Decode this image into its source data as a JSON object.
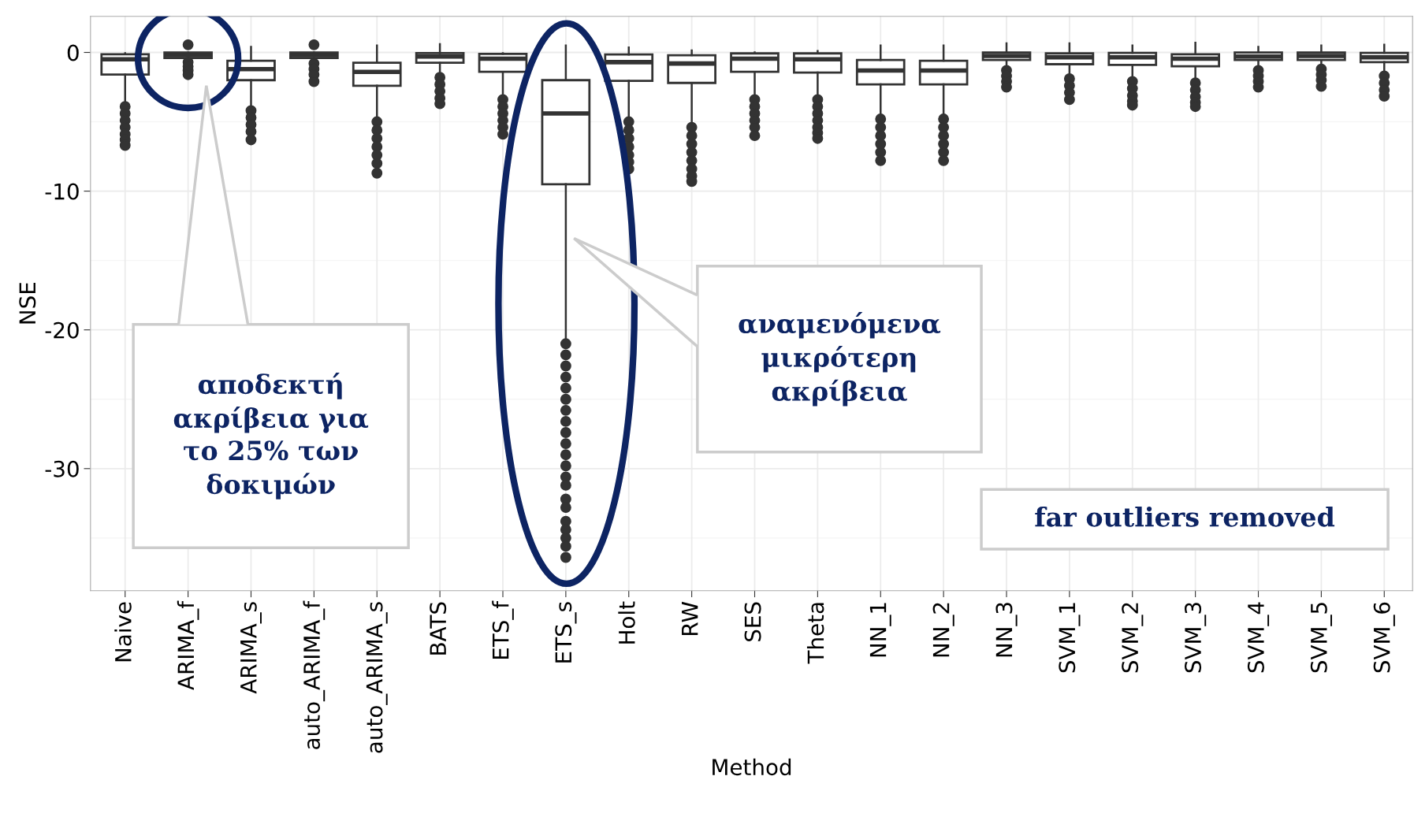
{
  "chart_data": {
    "type": "box",
    "xlabel": "Method",
    "ylabel": "NSE",
    "categories": [
      "Naive",
      "ARIMA_f",
      "ARIMA_s",
      "auto_ARIMA_f",
      "auto_ARIMA_s",
      "BATS",
      "ETS_f",
      "ETS_s",
      "Holt",
      "RW",
      "SES",
      "Theta",
      "NN_1",
      "NN_2",
      "NN_3",
      "SVM_1",
      "SVM_2",
      "SVM_3",
      "SVM_4",
      "SVM_5",
      "SVM_6"
    ],
    "boxes": [
      {
        "low": -3.7,
        "q1": -1.6,
        "median": -0.5,
        "q3": -0.13,
        "high": -0.05,
        "outliers": [
          -3.9,
          -4.4,
          -4.9,
          -5.4,
          -5.9,
          -6.3,
          -6.7
        ]
      },
      {
        "low": -0.6,
        "q1": -0.4,
        "median": -0.2,
        "q3": 0,
        "high": 0,
        "outliers": [
          0.55,
          -0.7,
          -1.0,
          -1.3,
          -1.6
        ]
      },
      {
        "low": -4.0,
        "q1": -2.0,
        "median": -1.2,
        "q3": -0.6,
        "high": 0.4,
        "outliers": [
          -4.2,
          -4.7,
          -5.2,
          -5.7,
          -6.3
        ]
      },
      {
        "low": -0.6,
        "q1": -0.4,
        "median": -0.2,
        "q3": 0,
        "high": 0,
        "outliers": [
          0.55,
          -0.8,
          -1.2,
          -1.6,
          -2.1
        ]
      },
      {
        "low": -4.8,
        "q1": -2.4,
        "median": -1.4,
        "q3": -0.75,
        "high": 0.5,
        "outliers": [
          -5.0,
          -5.6,
          -6.2,
          -6.8,
          -7.4,
          -8.0,
          -8.7
        ]
      },
      {
        "low": -1.6,
        "q1": -0.75,
        "median": -0.3,
        "q3": -0.05,
        "high": 0.6,
        "outliers": [
          -1.8,
          -2.3,
          -2.8,
          -3.3,
          -3.7
        ]
      },
      {
        "low": -3.2,
        "q1": -1.4,
        "median": -0.45,
        "q3": -0.1,
        "high": -0.05,
        "outliers": [
          -3.4,
          -3.9,
          -4.4,
          -4.9,
          -5.4,
          -5.9
        ]
      },
      {
        "low": -20.7,
        "q1": -9.5,
        "median": -4.4,
        "q3": -2.0,
        "high": 0.5,
        "outliers": [
          -21.0,
          -21.8,
          -22.6,
          -23.4,
          -24.2,
          -25.0,
          -25.8,
          -26.6,
          -27.4,
          -28.2,
          -29.0,
          -29.8,
          -30.6,
          -31.2,
          -32.2,
          -32.8,
          -33.8,
          -34.4,
          -35.0,
          -35.6,
          -36.4
        ]
      },
      {
        "low": -4.8,
        "q1": -2.05,
        "median": -0.7,
        "q3": -0.15,
        "high": 0.35,
        "outliers": [
          -5.0,
          -5.6,
          -6.2,
          -6.8,
          -7.4,
          -7.9,
          -8.4
        ]
      },
      {
        "low": -5.2,
        "q1": -2.2,
        "median": -0.8,
        "q3": -0.2,
        "high": 0.15,
        "outliers": [
          -5.4,
          -6.0,
          -6.6,
          -7.2,
          -7.8,
          -8.4,
          -8.9,
          -9.3
        ]
      },
      {
        "low": -3.2,
        "q1": -1.4,
        "median": -0.45,
        "q3": -0.07,
        "high": 0,
        "outliers": [
          -3.4,
          -3.9,
          -4.4,
          -4.9,
          -5.4,
          -6.0
        ]
      },
      {
        "low": -3.2,
        "q1": -1.45,
        "median": -0.5,
        "q3": -0.07,
        "high": 0.1,
        "outliers": [
          -3.4,
          -3.9,
          -4.4,
          -4.9,
          -5.4,
          -5.8,
          -6.2
        ]
      },
      {
        "low": -4.6,
        "q1": -2.3,
        "median": -1.3,
        "q3": -0.55,
        "high": 0.5,
        "outliers": [
          -4.8,
          -5.4,
          -6.0,
          -6.6,
          -7.2,
          -7.8
        ]
      },
      {
        "low": -4.6,
        "q1": -2.3,
        "median": -1.3,
        "q3": -0.6,
        "high": 0.5,
        "outliers": [
          -4.8,
          -5.4,
          -6.0,
          -6.6,
          -7.2,
          -7.8
        ]
      },
      {
        "low": -1.1,
        "q1": -0.55,
        "median": -0.25,
        "q3": 0,
        "high": 0.65,
        "outliers": [
          -1.3,
          -1.7,
          -2.1,
          -2.5
        ]
      },
      {
        "low": -1.7,
        "q1": -0.85,
        "median": -0.35,
        "q3": -0.07,
        "high": 0.65,
        "outliers": [
          -1.9,
          -2.4,
          -2.9,
          -3.4
        ]
      },
      {
        "low": -1.95,
        "q1": -0.9,
        "median": -0.35,
        "q3": -0.03,
        "high": 0.5,
        "outliers": [
          -2.1,
          -2.6,
          -3.1,
          -3.5,
          -3.8
        ]
      },
      {
        "low": -2.0,
        "q1": -1.0,
        "median": -0.45,
        "q3": -0.13,
        "high": 0.7,
        "outliers": [
          -2.2,
          -2.7,
          -3.2,
          -3.6,
          -3.9
        ]
      },
      {
        "low": -1.05,
        "q1": -0.55,
        "median": -0.3,
        "q3": 0,
        "high": 0.4,
        "outliers": [
          -1.3,
          -1.7,
          -2.1,
          -2.5
        ]
      },
      {
        "low": -1.0,
        "q1": -0.55,
        "median": -0.25,
        "q3": 0,
        "high": 0.5,
        "outliers": [
          -1.2,
          -1.6,
          -2.0,
          -2.45
        ]
      },
      {
        "low": -1.45,
        "q1": -0.7,
        "median": -0.35,
        "q3": -0.03,
        "high": 0.55,
        "outliers": [
          -1.7,
          -2.2,
          -2.7,
          -3.15
        ]
      }
    ],
    "ylim": [
      -38.8,
      2.6
    ],
    "yticks": [
      0,
      -10,
      -20,
      -30
    ],
    "grid": true,
    "annotations": [
      "αποδεκτή\nακρίβεια για\nτο 25% των\nδοκιμών",
      "αναμενόμενα\nμικρότερη\nακρίβεια",
      "far outliers removed"
    ]
  }
}
